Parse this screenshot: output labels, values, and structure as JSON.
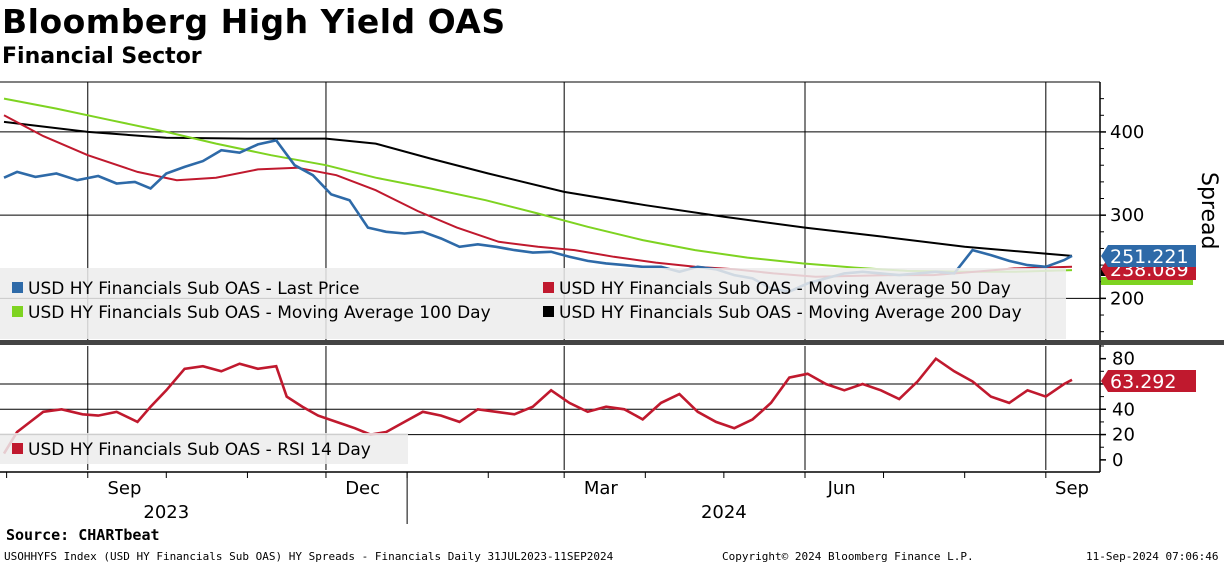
{
  "header": {
    "title": "Bloomberg High Yield OAS",
    "subtitle": "Financial Sector"
  },
  "footer": {
    "source": "Source: CHARTbeat",
    "index_line": "USOHHYFS Index (USD HY Financials Sub OAS) HY Spreads - Financials  Daily 31JUL2023-11SEP2024",
    "copyright": "Copyright© 2024 Bloomberg Finance L.P.",
    "timestamp": "11-Sep-2024 07:06:46"
  },
  "colors": {
    "last_price": "#2e6aa8",
    "ma50": "#c0192e",
    "ma100": "#7ed321",
    "ma200": "#000000",
    "rsi": "#c0192e"
  },
  "chart_data": [
    {
      "type": "line",
      "title": "USD HY Financials Sub OAS",
      "ylabel": "Spread",
      "ylim": [
        150,
        460
      ],
      "yticks": [
        "200",
        "300",
        "400"
      ],
      "x_range": [
        "2023-07-31",
        "2024-09-11"
      ],
      "series": [
        {
          "name": "USD HY Financials Sub OAS - Last Price",
          "points": [
            [
              "2023-07-31",
              345
            ],
            [
              "2023-08-05",
              352
            ],
            [
              "2023-08-12",
              346
            ],
            [
              "2023-08-20",
              350
            ],
            [
              "2023-08-28",
              342
            ],
            [
              "2023-09-05",
              347
            ],
            [
              "2023-09-12",
              338
            ],
            [
              "2023-09-19",
              340
            ],
            [
              "2023-09-25",
              332
            ],
            [
              "2023-10-01",
              350
            ],
            [
              "2023-10-08",
              358
            ],
            [
              "2023-10-15",
              365
            ],
            [
              "2023-10-22",
              378
            ],
            [
              "2023-10-29",
              375
            ],
            [
              "2023-11-05",
              385
            ],
            [
              "2023-11-12",
              390
            ],
            [
              "2023-11-19",
              360
            ],
            [
              "2023-11-26",
              348
            ],
            [
              "2023-12-03",
              325
            ],
            [
              "2023-12-10",
              318
            ],
            [
              "2023-12-17",
              285
            ],
            [
              "2023-12-24",
              280
            ],
            [
              "2023-12-31",
              278
            ],
            [
              "2024-01-07",
              280
            ],
            [
              "2024-01-14",
              272
            ],
            [
              "2024-01-21",
              262
            ],
            [
              "2024-01-28",
              265
            ],
            [
              "2024-02-04",
              262
            ],
            [
              "2024-02-11",
              258
            ],
            [
              "2024-02-18",
              255
            ],
            [
              "2024-02-25",
              256
            ],
            [
              "2024-03-03",
              250
            ],
            [
              "2024-03-10",
              245
            ],
            [
              "2024-03-17",
              242
            ],
            [
              "2024-03-24",
              240
            ],
            [
              "2024-03-31",
              238
            ],
            [
              "2024-04-07",
              238
            ],
            [
              "2024-04-14",
              232
            ],
            [
              "2024-04-21",
              238
            ],
            [
              "2024-04-28",
              235
            ],
            [
              "2024-05-05",
              228
            ],
            [
              "2024-05-12",
              224
            ],
            [
              "2024-05-19",
              212
            ],
            [
              "2024-05-26",
              208
            ],
            [
              "2024-06-02",
              218
            ],
            [
              "2024-06-09",
              224
            ],
            [
              "2024-06-16",
              230
            ],
            [
              "2024-06-23",
              232
            ],
            [
              "2024-06-30",
              230
            ],
            [
              "2024-07-07",
              228
            ],
            [
              "2024-07-14",
              230
            ],
            [
              "2024-07-21",
              232
            ],
            [
              "2024-07-28",
              230
            ],
            [
              "2024-08-04",
              258
            ],
            [
              "2024-08-11",
              252
            ],
            [
              "2024-08-18",
              245
            ],
            [
              "2024-08-25",
              240
            ],
            [
              "2024-09-01",
              238
            ],
            [
              "2024-09-08",
              246
            ],
            [
              "2024-09-11",
              251.221
            ]
          ]
        },
        {
          "name": "USD HY Financials Sub OAS - Moving Average 50 Day",
          "points": [
            [
              "2023-07-31",
              420
            ],
            [
              "2023-08-15",
              395
            ],
            [
              "2023-09-01",
              372
            ],
            [
              "2023-09-20",
              352
            ],
            [
              "2023-10-05",
              342
            ],
            [
              "2023-10-20",
              345
            ],
            [
              "2023-11-05",
              355
            ],
            [
              "2023-11-20",
              357
            ],
            [
              "2023-12-05",
              348
            ],
            [
              "2023-12-20",
              330
            ],
            [
              "2024-01-05",
              305
            ],
            [
              "2024-01-20",
              285
            ],
            [
              "2024-02-05",
              268
            ],
            [
              "2024-02-20",
              262
            ],
            [
              "2024-03-05",
              258
            ],
            [
              "2024-03-20",
              250
            ],
            [
              "2024-04-05",
              243
            ],
            [
              "2024-04-20",
              238
            ],
            [
              "2024-05-05",
              235
            ],
            [
              "2024-05-20",
              230
            ],
            [
              "2024-06-05",
              226
            ],
            [
              "2024-06-20",
              227
            ],
            [
              "2024-07-05",
              228
            ],
            [
              "2024-07-20",
              228
            ],
            [
              "2024-08-05",
              232
            ],
            [
              "2024-08-20",
              236
            ],
            [
              "2024-09-11",
              238.089
            ]
          ]
        },
        {
          "name": "USD HY Financials Sub OAS - Moving Average 100 Day",
          "points": [
            [
              "2023-07-31",
              440
            ],
            [
              "2023-08-20",
              428
            ],
            [
              "2023-09-10",
              414
            ],
            [
              "2023-10-01",
              400
            ],
            [
              "2023-10-20",
              386
            ],
            [
              "2023-11-10",
              372
            ],
            [
              "2023-12-01",
              360
            ],
            [
              "2023-12-20",
              345
            ],
            [
              "2024-01-10",
              332
            ],
            [
              "2024-01-31",
              318
            ],
            [
              "2024-02-20",
              302
            ],
            [
              "2024-03-10",
              286
            ],
            [
              "2024-03-31",
              270
            ],
            [
              "2024-04-20",
              258
            ],
            [
              "2024-05-10",
              249
            ],
            [
              "2024-05-31",
              242
            ],
            [
              "2024-06-20",
              237
            ],
            [
              "2024-07-10",
              233
            ],
            [
              "2024-07-31",
              232
            ],
            [
              "2024-08-20",
              232
            ],
            [
              "2024-09-11",
              234
            ]
          ]
        },
        {
          "name": "USD HY Financials Sub OAS - Moving Average 200 Day",
          "points": [
            [
              "2023-07-31",
              412
            ],
            [
              "2023-09-01",
              400
            ],
            [
              "2023-10-01",
              393
            ],
            [
              "2023-11-01",
              392
            ],
            [
              "2023-12-01",
              392
            ],
            [
              "2023-12-20",
              386
            ],
            [
              "2024-01-10",
              368
            ],
            [
              "2024-02-01",
              350
            ],
            [
              "2024-03-01",
              328
            ],
            [
              "2024-04-01",
              312
            ],
            [
              "2024-05-01",
              298
            ],
            [
              "2024-06-01",
              285
            ],
            [
              "2024-07-01",
              274
            ],
            [
              "2024-08-01",
              262
            ],
            [
              "2024-09-11",
              251
            ]
          ]
        }
      ],
      "last_labels": [
        {
          "series": "USD HY Financials Sub OAS - Last Price",
          "value": "251.221"
        },
        {
          "series": "USD HY Financials Sub OAS - Moving Average 50 Day",
          "value": "238.089"
        }
      ]
    },
    {
      "type": "line",
      "title": "USD HY Financials Sub OAS - RSI 14 Day",
      "ylim": [
        -8,
        90
      ],
      "yticks": [
        "0",
        "20",
        "40",
        "60",
        "80"
      ],
      "x_range": [
        "2023-07-31",
        "2024-09-11"
      ],
      "series": [
        {
          "name": "USD HY Financials Sub OAS - RSI 14 Day",
          "points": [
            [
              "2023-07-31",
              5
            ],
            [
              "2023-08-05",
              22
            ],
            [
              "2023-08-10",
              30
            ],
            [
              "2023-08-15",
              38
            ],
            [
              "2023-08-22",
              40
            ],
            [
              "2023-08-30",
              36
            ],
            [
              "2023-09-05",
              35
            ],
            [
              "2023-09-12",
              38
            ],
            [
              "2023-09-20",
              30
            ],
            [
              "2023-09-25",
              42
            ],
            [
              "2023-10-01",
              55
            ],
            [
              "2023-10-08",
              72
            ],
            [
              "2023-10-15",
              74
            ],
            [
              "2023-10-22",
              70
            ],
            [
              "2023-10-29",
              76
            ],
            [
              "2023-11-05",
              72
            ],
            [
              "2023-11-12",
              74
            ],
            [
              "2023-11-16",
              50
            ],
            [
              "2023-11-22",
              42
            ],
            [
              "2023-11-28",
              35
            ],
            [
              "2023-12-05",
              30
            ],
            [
              "2023-12-12",
              25
            ],
            [
              "2023-12-18",
              20
            ],
            [
              "2023-12-24",
              22
            ],
            [
              "2023-12-31",
              30
            ],
            [
              "2024-01-07",
              38
            ],
            [
              "2024-01-14",
              35
            ],
            [
              "2024-01-21",
              30
            ],
            [
              "2024-01-28",
              40
            ],
            [
              "2024-02-04",
              38
            ],
            [
              "2024-02-11",
              36
            ],
            [
              "2024-02-18",
              42
            ],
            [
              "2024-02-25",
              55
            ],
            [
              "2024-03-03",
              45
            ],
            [
              "2024-03-10",
              38
            ],
            [
              "2024-03-17",
              42
            ],
            [
              "2024-03-24",
              40
            ],
            [
              "2024-03-31",
              32
            ],
            [
              "2024-04-07",
              45
            ],
            [
              "2024-04-14",
              52
            ],
            [
              "2024-04-21",
              38
            ],
            [
              "2024-04-28",
              30
            ],
            [
              "2024-05-05",
              25
            ],
            [
              "2024-05-12",
              32
            ],
            [
              "2024-05-19",
              45
            ],
            [
              "2024-05-26",
              65
            ],
            [
              "2024-06-02",
              68
            ],
            [
              "2024-06-09",
              60
            ],
            [
              "2024-06-16",
              55
            ],
            [
              "2024-06-23",
              60
            ],
            [
              "2024-06-30",
              55
            ],
            [
              "2024-07-07",
              48
            ],
            [
              "2024-07-14",
              62
            ],
            [
              "2024-07-21",
              80
            ],
            [
              "2024-07-28",
              70
            ],
            [
              "2024-08-04",
              62
            ],
            [
              "2024-08-11",
              50
            ],
            [
              "2024-08-18",
              45
            ],
            [
              "2024-08-25",
              55
            ],
            [
              "2024-09-01",
              50
            ],
            [
              "2024-09-08",
              60
            ],
            [
              "2024-09-11",
              63.292
            ]
          ]
        }
      ],
      "last_labels": [
        {
          "series": "USD HY Financials Sub OAS - RSI 14 Day",
          "value": "63.292"
        }
      ]
    }
  ],
  "x_axis": {
    "month_ticks": [
      {
        "label": "Sep",
        "date": "2023-09-15"
      },
      {
        "label": "Dec",
        "date": "2023-12-15"
      },
      {
        "label": "Mar",
        "date": "2024-03-15"
      },
      {
        "label": "Jun",
        "date": "2024-06-15"
      },
      {
        "label": "Sep",
        "date": "2024-09-11"
      }
    ],
    "gridlines": [
      "2023-09-01",
      "2023-12-01",
      "2024-03-01",
      "2024-06-01",
      "2024-09-01"
    ],
    "year_labels": [
      {
        "label": "2023",
        "date": "2023-10-01"
      },
      {
        "label": "2024",
        "date": "2024-05-01"
      }
    ],
    "year_divider": "2024-01-01"
  }
}
